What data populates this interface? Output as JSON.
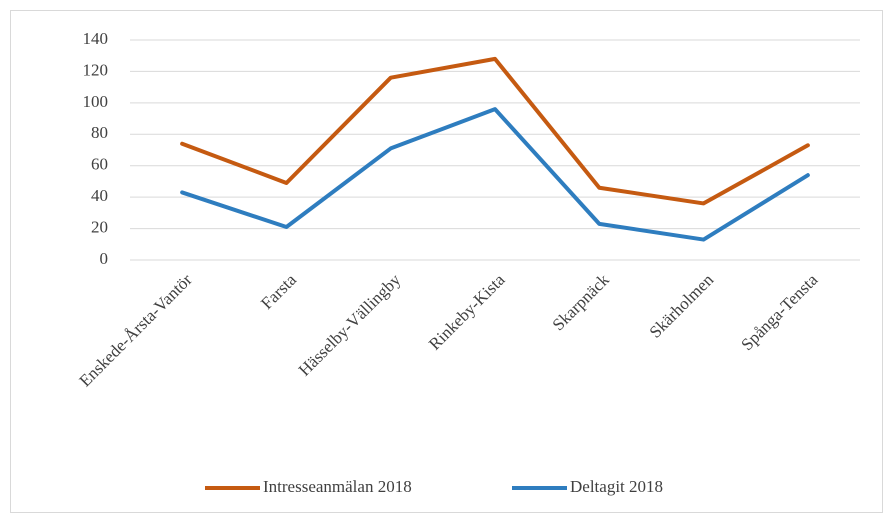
{
  "chart_data": {
    "type": "line",
    "categories": [
      "Enskede-Årsta-Vantör",
      "Farsta",
      "Hässelby-Vällingby",
      "Rinkeby-Kista",
      "Skarpnäck",
      "Skärholmen",
      "Spånga-Tensta"
    ],
    "series": [
      {
        "name": "Intresseanmälan 2018",
        "color": "#c55a11",
        "values": [
          74,
          49,
          116,
          128,
          46,
          36,
          73
        ]
      },
      {
        "name": "Deltagit 2018",
        "color": "#2e7dbf",
        "values": [
          43,
          21,
          71,
          96,
          23,
          13,
          54
        ]
      }
    ],
    "ylim": [
      0,
      140
    ],
    "yticks": [
      0,
      20,
      40,
      60,
      80,
      100,
      120,
      140
    ],
    "grid": true,
    "legend": "bottom"
  }
}
